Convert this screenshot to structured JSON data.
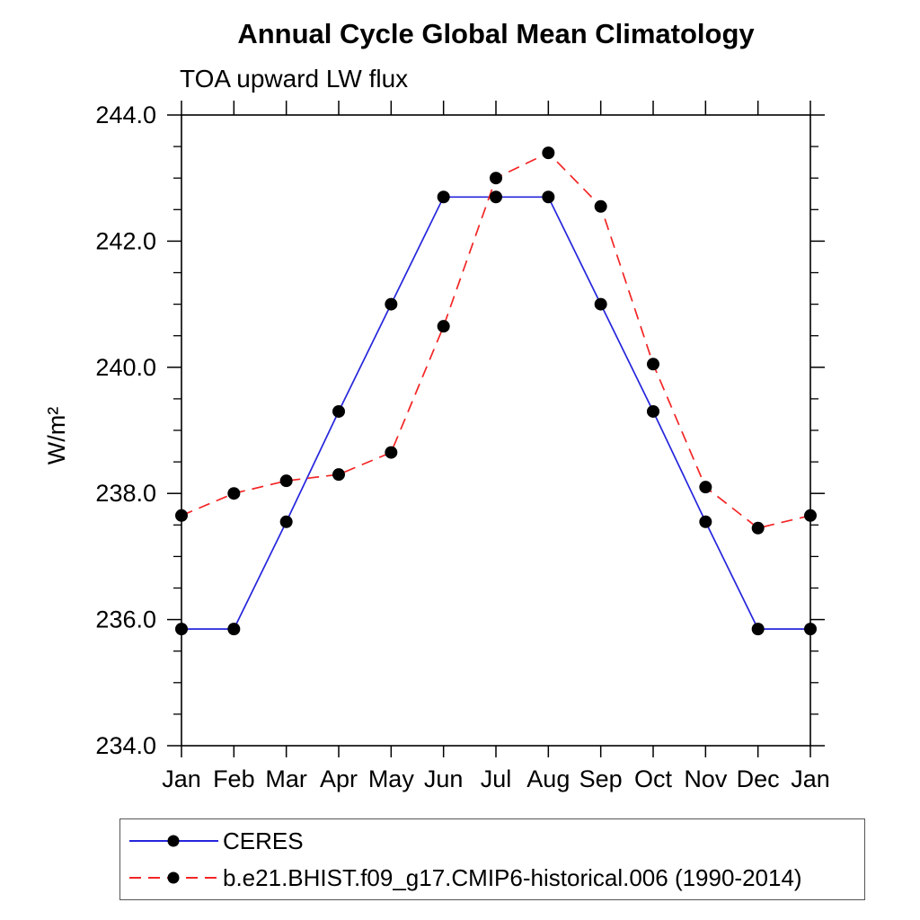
{
  "page": {
    "background": "#ffffff"
  },
  "chart_data": {
    "type": "line",
    "title": "Annual Cycle Global Mean Climatology",
    "subtitle": "TOA upward LW flux",
    "ylabel": "W/m²",
    "xlabel": "",
    "categories": [
      "Jan",
      "Feb",
      "Mar",
      "Apr",
      "May",
      "Jun",
      "Jul",
      "Aug",
      "Sep",
      "Oct",
      "Nov",
      "Dec",
      "Jan"
    ],
    "series": [
      {
        "name": "CERES",
        "color": "#2525dd",
        "line_style": "solid",
        "marker": "black-filled-circle",
        "values": [
          235.85,
          235.85,
          237.55,
          239.3,
          241.0,
          242.7,
          242.7,
          242.7,
          241.0,
          239.3,
          237.55,
          235.85,
          235.85
        ]
      },
      {
        "name": "b.e21.BHIST.f09_g17.CMIP6-historical.006 (1990-2014)",
        "color": "#f32525",
        "line_style": "dashed",
        "marker": "black-filled-circle",
        "values": [
          237.65,
          238.0,
          238.2,
          238.3,
          238.65,
          240.65,
          243.0,
          243.4,
          242.55,
          240.05,
          238.1,
          237.45,
          237.65
        ]
      }
    ],
    "ylim": [
      234.0,
      244.0
    ],
    "ytick_major_values": [
      234.0,
      236.0,
      238.0,
      240.0,
      242.0,
      244.0
    ],
    "ytick_major_labels": [
      "234.0",
      "236.0",
      "238.0",
      "240.0",
      "242.0",
      "244.0"
    ],
    "ytick_minor_step": 0.5,
    "grid": false,
    "marker_color": "#000000",
    "axis_color": "#000000",
    "legend_position": "bottom-left-box"
  }
}
